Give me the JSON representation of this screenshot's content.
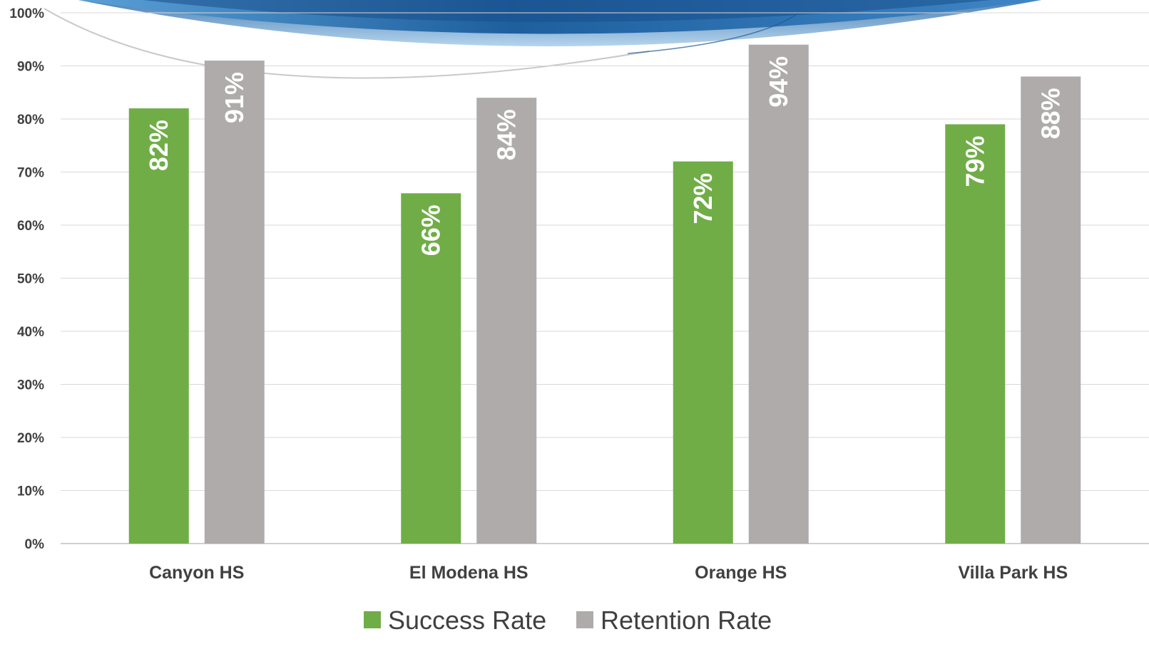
{
  "chart_data": {
    "type": "bar",
    "categories": [
      "Canyon HS",
      "El Modena HS",
      "Orange HS",
      "Villa Park HS"
    ],
    "series": [
      {
        "name": "Success Rate",
        "values": [
          82,
          66,
          72,
          79
        ],
        "labels": [
          "82%",
          "66%",
          "72%",
          "79%"
        ],
        "color": "#70ad47"
      },
      {
        "name": "Retention Rate",
        "values": [
          91,
          84,
          94,
          88
        ],
        "labels": [
          "91%",
          "84%",
          "94%",
          "88%"
        ],
        "color": "#afabab"
      }
    ],
    "ylim": [
      0,
      100
    ],
    "yticks": [
      0,
      10,
      20,
      30,
      40,
      50,
      60,
      70,
      80,
      90,
      100
    ],
    "ytick_labels": [
      "0%",
      "10%",
      "20%",
      "30%",
      "40%",
      "50%",
      "60%",
      "70%",
      "80%",
      "90%",
      "100%"
    ],
    "grid": true,
    "legend": "bottom-center",
    "title": "",
    "xlabel": "",
    "ylabel": ""
  }
}
